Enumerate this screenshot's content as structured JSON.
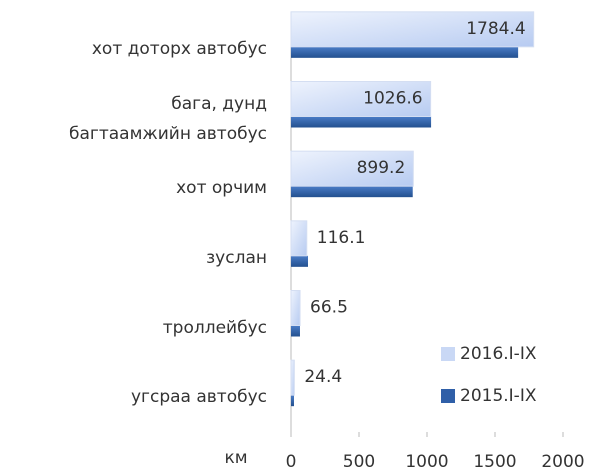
{
  "chart_data": {
    "type": "bar",
    "orientation": "horizontal",
    "categories": [
      "хот доторх автобус",
      "бага, дунд\nбагтаамжийн автобус",
      "хот орчим",
      "зуслан",
      "троллейбус",
      "угсраа автобус"
    ],
    "series": [
      {
        "name": "2016.I-IX",
        "color": "#c9d8f5",
        "values": [
          1784.4,
          1026.6,
          899.2,
          116.1,
          66.5,
          24.4
        ]
      },
      {
        "name": "2015.I-IX",
        "color": "#2f5fa8",
        "values": [
          1670,
          1030,
          895,
          125,
          66,
          22
        ]
      }
    ],
    "xlabel": "км",
    "xlim": [
      0,
      2000
    ],
    "xticks": [
      0,
      500,
      1000,
      1500,
      2000
    ],
    "legend": "lower right"
  }
}
